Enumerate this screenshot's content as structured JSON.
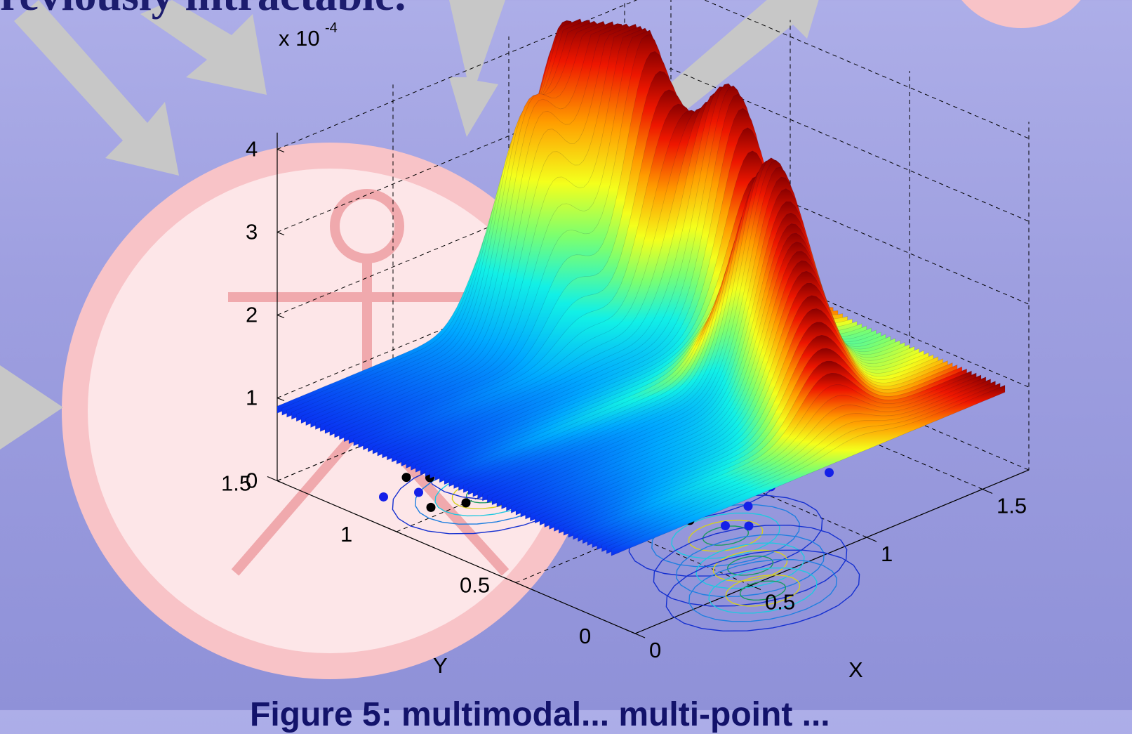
{
  "slide": {
    "heading": "reviously intractable.",
    "caption": "Figure 5: multimodal... multi-point ..."
  },
  "colors": {
    "background": "#9e9fe0",
    "arrow": "#c7c7c7",
    "person_icon": "#f0a9ad",
    "circle_fill": "#fde6e8",
    "peak_color": "#8a0000",
    "base_color": "#0a2df0"
  },
  "icons": [
    "arrow-icon",
    "person-icon"
  ],
  "chart_data": {
    "type": "surface",
    "zlabel_scale": "x 10",
    "zlabel_exp": "-4",
    "xlabel": "X",
    "ylabel": "Y",
    "z_ticks": [
      "0",
      "1",
      "2",
      "3",
      "4"
    ],
    "y_ticks": [
      "0",
      "0.5",
      "1",
      "1.5"
    ],
    "x_ticks": [
      "0",
      "0.5",
      "1",
      "1.5"
    ],
    "z_range": [
      0,
      4.2
    ],
    "x_range": [
      0,
      1.7
    ],
    "y_range": [
      0,
      1.5
    ],
    "base_level": 0.9,
    "grid": true,
    "peaks": [
      {
        "x": 0.95,
        "y": 1.35,
        "z": 3.5
      },
      {
        "x": 1.2,
        "y": 1.45,
        "z": 3.8
      },
      {
        "x": 1.3,
        "y": 1.25,
        "z": 3.9
      },
      {
        "x": 1.45,
        "y": 1.0,
        "z": 3.6
      },
      {
        "x": 1.25,
        "y": 0.65,
        "z": 3.3
      },
      {
        "x": 1.15,
        "y": 0.45,
        "z": 2.3
      },
      {
        "x": 1.05,
        "y": 0.3,
        "z": 1.5
      },
      {
        "x": 1.55,
        "y": 1.35,
        "z": 2.6
      }
    ],
    "sample_points": [
      {
        "x": 0.2,
        "y": 1.05,
        "class": "black"
      },
      {
        "x": 0.25,
        "y": 1.15,
        "class": "blue"
      },
      {
        "x": 0.3,
        "y": 1.0,
        "class": "black"
      },
      {
        "x": 0.35,
        "y": 1.2,
        "class": "black"
      },
      {
        "x": 0.4,
        "y": 1.1,
        "class": "blue"
      },
      {
        "x": 0.5,
        "y": 0.95,
        "class": "blue"
      },
      {
        "x": 0.55,
        "y": 0.75,
        "class": "black"
      },
      {
        "x": 0.65,
        "y": 0.6,
        "class": "black"
      },
      {
        "x": 0.7,
        "y": 0.45,
        "class": "black"
      },
      {
        "x": 0.75,
        "y": 0.35,
        "class": "blue"
      },
      {
        "x": 0.8,
        "y": 0.3,
        "class": "blue"
      },
      {
        "x": 0.85,
        "y": 0.55,
        "class": "black"
      },
      {
        "x": 0.9,
        "y": 0.4,
        "class": "blue"
      },
      {
        "x": 1.0,
        "y": 0.6,
        "class": "blue"
      },
      {
        "x": 1.05,
        "y": 0.45,
        "class": "blue"
      },
      {
        "x": 1.1,
        "y": 0.65,
        "class": "black"
      },
      {
        "x": 1.15,
        "y": 0.5,
        "class": "blue"
      },
      {
        "x": 1.2,
        "y": 0.7,
        "class": "blue"
      },
      {
        "x": 1.3,
        "y": 0.55,
        "class": "black"
      },
      {
        "x": 1.25,
        "y": 0.4,
        "class": "blue"
      },
      {
        "x": 0.45,
        "y": 1.25,
        "class": "blue"
      },
      {
        "x": 0.3,
        "y": 1.25,
        "class": "black"
      },
      {
        "x": 0.15,
        "y": 1.2,
        "class": "blue"
      },
      {
        "x": 0.6,
        "y": 0.85,
        "class": "blue"
      }
    ]
  }
}
